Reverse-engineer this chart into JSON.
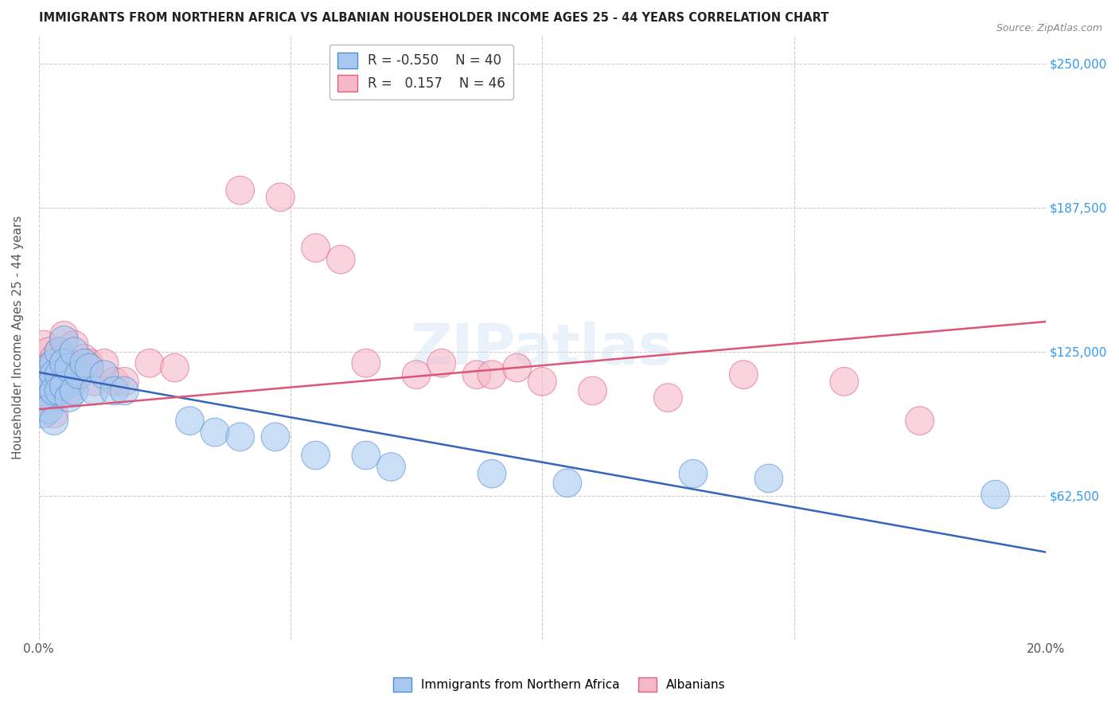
{
  "title": "IMMIGRANTS FROM NORTHERN AFRICA VS ALBANIAN HOUSEHOLDER INCOME AGES 25 - 44 YEARS CORRELATION CHART",
  "source": "Source: ZipAtlas.com",
  "ylabel": "Householder Income Ages 25 - 44 years",
  "xlim": [
    0.0,
    0.2
  ],
  "ylim": [
    0,
    262500
  ],
  "xtick_positions": [
    0.0,
    0.05,
    0.1,
    0.15,
    0.2
  ],
  "xtick_labels": [
    "0.0%",
    "",
    "",
    "",
    "20.0%"
  ],
  "ytick_positions": [
    62500,
    125000,
    187500,
    250000
  ],
  "ytick_right_labels": [
    "$62,500",
    "$125,000",
    "$187,500",
    "$250,000"
  ],
  "legend_blue_r": "-0.550",
  "legend_blue_n": "40",
  "legend_pink_r": "0.157",
  "legend_pink_n": "46",
  "blue_color": "#A8C8F0",
  "pink_color": "#F5B8C8",
  "blue_edge_color": "#5090D0",
  "pink_edge_color": "#E06080",
  "blue_line_color": "#3366BB",
  "pink_line_color": "#DD5577",
  "blue_scatter": {
    "x": [
      0.001,
      0.001,
      0.001,
      0.002,
      0.002,
      0.002,
      0.002,
      0.003,
      0.003,
      0.003,
      0.003,
      0.004,
      0.004,
      0.004,
      0.005,
      0.005,
      0.005,
      0.006,
      0.006,
      0.007,
      0.007,
      0.008,
      0.009,
      0.01,
      0.011,
      0.013,
      0.015,
      0.017,
      0.03,
      0.035,
      0.04,
      0.047,
      0.055,
      0.065,
      0.07,
      0.09,
      0.105,
      0.13,
      0.145,
      0.19
    ],
    "y": [
      115000,
      108000,
      98000,
      118000,
      110000,
      105000,
      100000,
      120000,
      115000,
      108000,
      95000,
      125000,
      115000,
      108000,
      130000,
      120000,
      110000,
      118000,
      105000,
      125000,
      108000,
      115000,
      120000,
      118000,
      108000,
      115000,
      108000,
      108000,
      95000,
      90000,
      88000,
      88000,
      80000,
      80000,
      75000,
      72000,
      68000,
      72000,
      70000,
      63000
    ],
    "sizes": [
      55,
      55,
      55,
      55,
      55,
      55,
      55,
      55,
      55,
      55,
      55,
      55,
      55,
      55,
      55,
      55,
      55,
      55,
      55,
      55,
      55,
      55,
      55,
      55,
      55,
      55,
      55,
      55,
      55,
      55,
      55,
      55,
      55,
      55,
      55,
      55,
      55,
      55,
      55,
      55
    ]
  },
  "pink_scatter": {
    "x": [
      0.001,
      0.001,
      0.001,
      0.002,
      0.002,
      0.002,
      0.002,
      0.003,
      0.003,
      0.003,
      0.003,
      0.004,
      0.004,
      0.004,
      0.005,
      0.005,
      0.005,
      0.006,
      0.006,
      0.007,
      0.007,
      0.008,
      0.009,
      0.01,
      0.011,
      0.013,
      0.015,
      0.017,
      0.022,
      0.027,
      0.04,
      0.048,
      0.055,
      0.06,
      0.065,
      0.075,
      0.08,
      0.087,
      0.09,
      0.095,
      0.1,
      0.11,
      0.125,
      0.14,
      0.16,
      0.175
    ],
    "y": [
      128000,
      118000,
      105000,
      125000,
      118000,
      110000,
      103000,
      122000,
      118000,
      112000,
      98000,
      125000,
      118000,
      110000,
      132000,
      122000,
      112000,
      120000,
      108000,
      128000,
      112000,
      118000,
      122000,
      120000,
      112000,
      120000,
      112000,
      112000,
      120000,
      118000,
      195000,
      192000,
      170000,
      165000,
      120000,
      115000,
      120000,
      115000,
      115000,
      118000,
      112000,
      108000,
      105000,
      115000,
      112000,
      95000
    ],
    "sizes": [
      55,
      55,
      55,
      55,
      55,
      55,
      55,
      55,
      55,
      55,
      55,
      55,
      55,
      55,
      55,
      55,
      55,
      55,
      55,
      55,
      55,
      55,
      55,
      55,
      55,
      55,
      55,
      55,
      55,
      55,
      55,
      55,
      55,
      55,
      55,
      55,
      55,
      55,
      55,
      55,
      55,
      55,
      55,
      55,
      55,
      55
    ]
  },
  "background_color": "#ffffff",
  "grid_color": "#cccccc",
  "blue_trend_x": [
    0.0,
    0.2
  ],
  "blue_trend_y": [
    116000,
    38000
  ],
  "pink_trend_x": [
    0.0,
    0.2
  ],
  "pink_trend_y": [
    100000,
    138000
  ]
}
